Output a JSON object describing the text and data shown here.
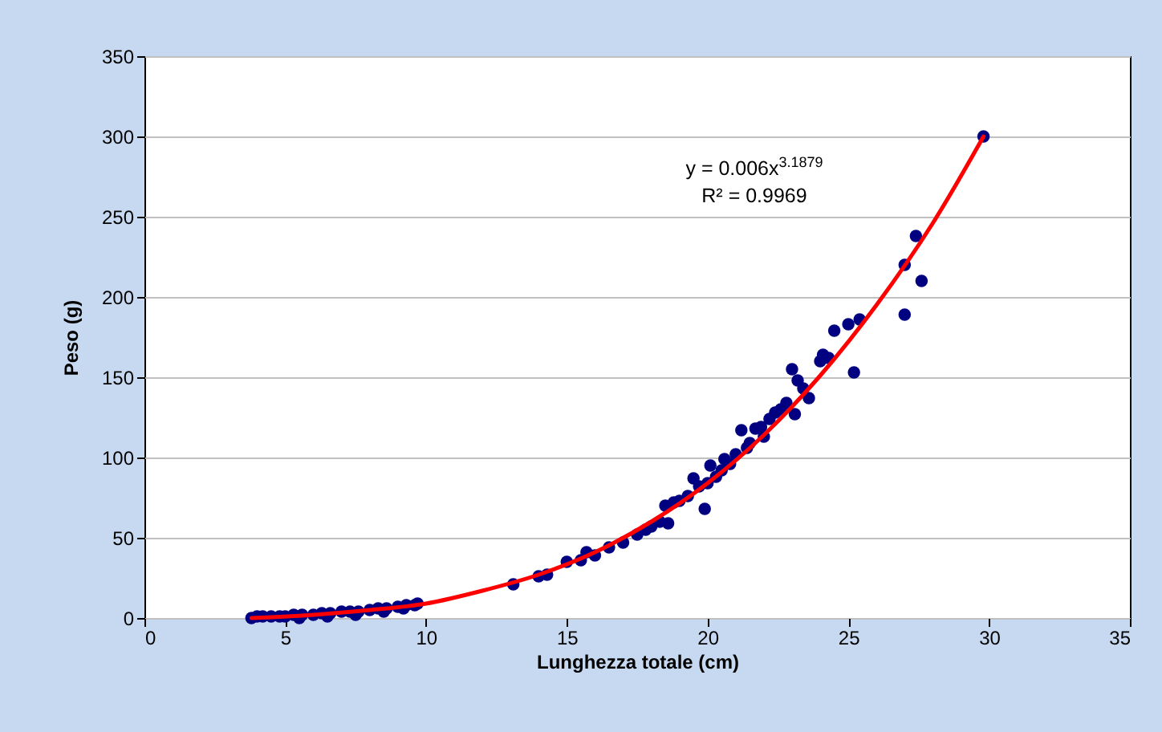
{
  "chart_data": {
    "type": "scatter",
    "xlabel": "Lunghezza totale (cm)",
    "ylabel": "Peso (g)",
    "xlim": [
      0,
      35
    ],
    "xticks": [
      0,
      5,
      10,
      15,
      20,
      25,
      30,
      35
    ],
    "ylim": [
      0,
      350
    ],
    "yticks": [
      0,
      50,
      100,
      150,
      200,
      250,
      300,
      350
    ],
    "grid": "y",
    "marker": "circle",
    "annotations": [
      "y = 0.006x$^{3.1879}$",
      "R² = 0.9969"
    ],
    "series": [
      {
        "color": "#000080",
        "x": [
          3.8,
          4,
          4.2,
          4.5,
          4.8,
          5,
          5.3,
          5.5,
          5.6,
          6,
          6.3,
          6.5,
          6.6,
          7,
          7.3,
          7.5,
          7.6,
          8,
          8.3,
          8.5,
          8.6,
          9,
          9.2,
          9.3,
          9.6,
          9.7,
          13.1,
          14,
          14.3,
          15,
          15.5,
          15.7,
          16,
          16.5,
          17,
          17.5,
          17.8,
          18,
          18.3,
          18.5,
          18.6,
          18.8,
          19,
          19.3,
          19.5,
          19.7,
          19.9,
          20,
          20.1,
          20.3,
          20.5,
          20.6,
          20.8,
          21,
          21.2,
          21.4,
          21.5,
          21.7,
          21.9,
          22,
          22.2,
          22.4,
          22.6,
          22.8,
          23,
          23.1,
          23.2,
          23.4,
          23.6,
          24,
          24.1,
          24.3,
          24.5,
          25,
          25.2,
          25.4,
          27,
          27,
          27.4,
          27.6,
          29.8
        ],
        "values": [
          0,
          1,
          1,
          1,
          1,
          1,
          2,
          0,
          2,
          2,
          3,
          1,
          3,
          4,
          4,
          2,
          4,
          5,
          6,
          4,
          6,
          7,
          6,
          8,
          8,
          9,
          21,
          26,
          27,
          35,
          36,
          41,
          39,
          44,
          47,
          52,
          55,
          57,
          60,
          70,
          59,
          72,
          73,
          76,
          87,
          82,
          68,
          84,
          95,
          88,
          92,
          99,
          96,
          102,
          117,
          106,
          109,
          118,
          119,
          113,
          124,
          128,
          130,
          134,
          155,
          127,
          148,
          143,
          137,
          160,
          164,
          162,
          179,
          183,
          153,
          186,
          189,
          220,
          238,
          210,
          300
        ]
      },
      {
        "type": "line",
        "color": "#ff0000",
        "marker": "none",
        "line_style": "solid",
        "x": [
          3.8,
          6,
          8,
          10,
          12,
          14,
          16,
          18,
          20,
          22,
          24,
          26,
          28,
          29.8
        ],
        "values": [
          0,
          2,
          5,
          9,
          17,
          27,
          41,
          60,
          84,
          114,
          151,
          195,
          246,
          300
        ]
      }
    ]
  }
}
